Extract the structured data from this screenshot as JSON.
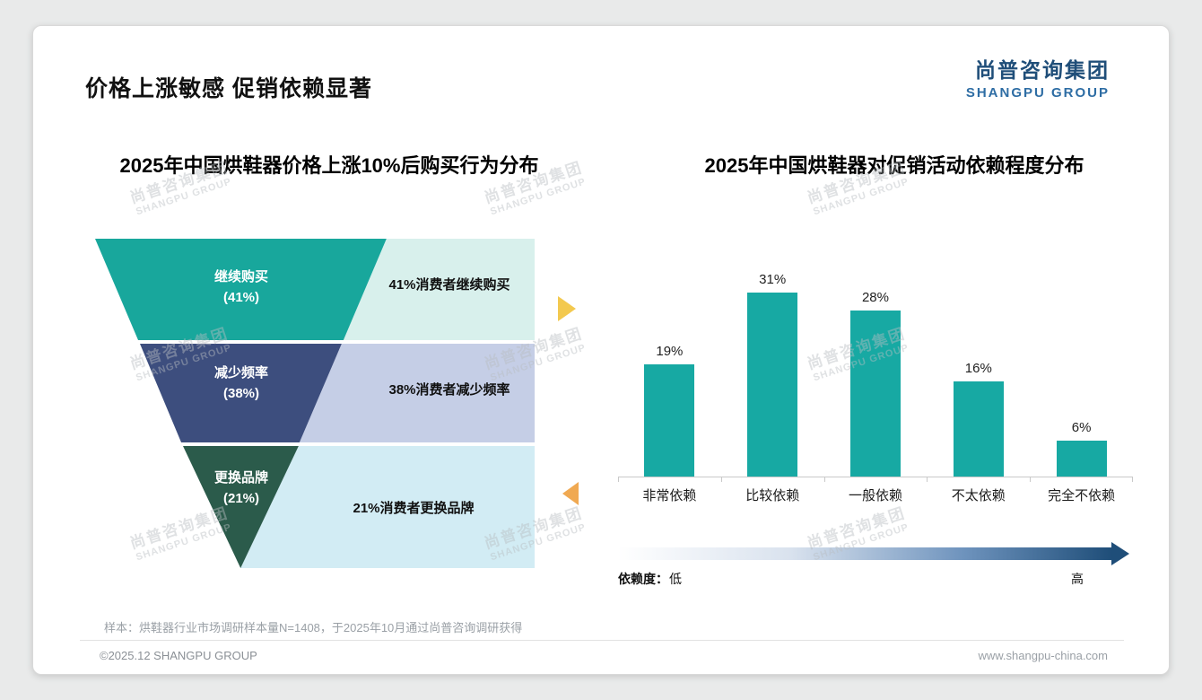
{
  "page": {
    "title": "价格上涨敏感 促销依赖显著",
    "logo": {
      "cn": "尚普咨询集团",
      "en": "SHANGPU GROUP"
    },
    "watermark": {
      "cn": "尚普咨询集团",
      "en": "SHANGPU GROUP"
    },
    "footer": {
      "sample_note": "样本：烘鞋器行业市场调研样本量N=1408，于2025年10月通过尚普咨询调研获得",
      "copyright": "©2025.12 SHANGPU GROUP",
      "website": "www.shangpu-china.com"
    }
  },
  "chart_data": [
    {
      "type": "funnel",
      "title": "2025年中国烘鞋器价格上涨10%后购买行为分布",
      "levels": [
        {
          "label": "继续购买",
          "pct": "(41%)",
          "value": 41,
          "desc": "41%消费者继续购买",
          "color": "#18a79c",
          "desc_bg": "#d8f0ec"
        },
        {
          "label": "减少频率",
          "pct": "(38%)",
          "value": 38,
          "desc": "38%消费者减少频率",
          "color": "#3d4e7e",
          "desc_bg": "#c5cee6"
        },
        {
          "label": "更换品牌",
          "pct": "(21%)",
          "value": 21,
          "desc": "21%消费者更换品牌",
          "color": "#2b5b4b",
          "desc_bg": "#d2ecf4"
        }
      ]
    },
    {
      "type": "bar",
      "title": "2025年中国烘鞋器对促销活动依赖程度分布",
      "categories": [
        "非常依赖",
        "比较依赖",
        "一般依赖",
        "不太依赖",
        "完全不依赖"
      ],
      "values": [
        19,
        31,
        28,
        16,
        6
      ],
      "value_suffix": "%",
      "bar_color": "#17a9a3",
      "ylim": [
        0,
        35
      ],
      "grid": false,
      "legend": "none",
      "axis": {
        "label": "依赖度：",
        "low": "低",
        "high": "高"
      }
    }
  ]
}
